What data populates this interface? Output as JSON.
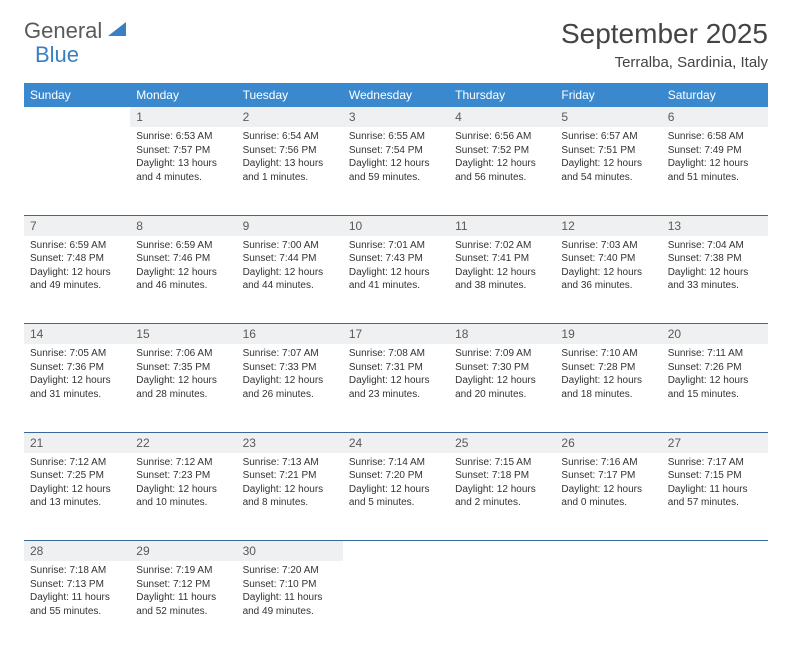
{
  "brand": {
    "part1": "General",
    "part2": "Blue"
  },
  "title": "September 2025",
  "location": "Terralba, Sardinia, Italy",
  "colors": {
    "header_bg": "#3a89cf",
    "header_text": "#ffffff",
    "daynum_bg": "#eef0f1",
    "daynum_text": "#5a5a5a",
    "rule": "#3a6a9a",
    "brand_accent": "#3a7fc4",
    "body_text": "#333333"
  },
  "typography": {
    "title_fontsize": 28,
    "location_fontsize": 15,
    "dayheader_fontsize": 12,
    "daynum_fontsize": 12,
    "cell_fontsize": 10
  },
  "calendar": {
    "type": "table",
    "day_headers": [
      "Sunday",
      "Monday",
      "Tuesday",
      "Wednesday",
      "Thursday",
      "Friday",
      "Saturday"
    ],
    "weeks": [
      [
        null,
        {
          "n": "1",
          "sunrise": "Sunrise: 6:53 AM",
          "sunset": "Sunset: 7:57 PM",
          "daylight": "Daylight: 13 hours and 4 minutes."
        },
        {
          "n": "2",
          "sunrise": "Sunrise: 6:54 AM",
          "sunset": "Sunset: 7:56 PM",
          "daylight": "Daylight: 13 hours and 1 minutes."
        },
        {
          "n": "3",
          "sunrise": "Sunrise: 6:55 AM",
          "sunset": "Sunset: 7:54 PM",
          "daylight": "Daylight: 12 hours and 59 minutes."
        },
        {
          "n": "4",
          "sunrise": "Sunrise: 6:56 AM",
          "sunset": "Sunset: 7:52 PM",
          "daylight": "Daylight: 12 hours and 56 minutes."
        },
        {
          "n": "5",
          "sunrise": "Sunrise: 6:57 AM",
          "sunset": "Sunset: 7:51 PM",
          "daylight": "Daylight: 12 hours and 54 minutes."
        },
        {
          "n": "6",
          "sunrise": "Sunrise: 6:58 AM",
          "sunset": "Sunset: 7:49 PM",
          "daylight": "Daylight: 12 hours and 51 minutes."
        }
      ],
      [
        {
          "n": "7",
          "sunrise": "Sunrise: 6:59 AM",
          "sunset": "Sunset: 7:48 PM",
          "daylight": "Daylight: 12 hours and 49 minutes."
        },
        {
          "n": "8",
          "sunrise": "Sunrise: 6:59 AM",
          "sunset": "Sunset: 7:46 PM",
          "daylight": "Daylight: 12 hours and 46 minutes."
        },
        {
          "n": "9",
          "sunrise": "Sunrise: 7:00 AM",
          "sunset": "Sunset: 7:44 PM",
          "daylight": "Daylight: 12 hours and 44 minutes."
        },
        {
          "n": "10",
          "sunrise": "Sunrise: 7:01 AM",
          "sunset": "Sunset: 7:43 PM",
          "daylight": "Daylight: 12 hours and 41 minutes."
        },
        {
          "n": "11",
          "sunrise": "Sunrise: 7:02 AM",
          "sunset": "Sunset: 7:41 PM",
          "daylight": "Daylight: 12 hours and 38 minutes."
        },
        {
          "n": "12",
          "sunrise": "Sunrise: 7:03 AM",
          "sunset": "Sunset: 7:40 PM",
          "daylight": "Daylight: 12 hours and 36 minutes."
        },
        {
          "n": "13",
          "sunrise": "Sunrise: 7:04 AM",
          "sunset": "Sunset: 7:38 PM",
          "daylight": "Daylight: 12 hours and 33 minutes."
        }
      ],
      [
        {
          "n": "14",
          "sunrise": "Sunrise: 7:05 AM",
          "sunset": "Sunset: 7:36 PM",
          "daylight": "Daylight: 12 hours and 31 minutes."
        },
        {
          "n": "15",
          "sunrise": "Sunrise: 7:06 AM",
          "sunset": "Sunset: 7:35 PM",
          "daylight": "Daylight: 12 hours and 28 minutes."
        },
        {
          "n": "16",
          "sunrise": "Sunrise: 7:07 AM",
          "sunset": "Sunset: 7:33 PM",
          "daylight": "Daylight: 12 hours and 26 minutes."
        },
        {
          "n": "17",
          "sunrise": "Sunrise: 7:08 AM",
          "sunset": "Sunset: 7:31 PM",
          "daylight": "Daylight: 12 hours and 23 minutes."
        },
        {
          "n": "18",
          "sunrise": "Sunrise: 7:09 AM",
          "sunset": "Sunset: 7:30 PM",
          "daylight": "Daylight: 12 hours and 20 minutes."
        },
        {
          "n": "19",
          "sunrise": "Sunrise: 7:10 AM",
          "sunset": "Sunset: 7:28 PM",
          "daylight": "Daylight: 12 hours and 18 minutes."
        },
        {
          "n": "20",
          "sunrise": "Sunrise: 7:11 AM",
          "sunset": "Sunset: 7:26 PM",
          "daylight": "Daylight: 12 hours and 15 minutes."
        }
      ],
      [
        {
          "n": "21",
          "sunrise": "Sunrise: 7:12 AM",
          "sunset": "Sunset: 7:25 PM",
          "daylight": "Daylight: 12 hours and 13 minutes."
        },
        {
          "n": "22",
          "sunrise": "Sunrise: 7:12 AM",
          "sunset": "Sunset: 7:23 PM",
          "daylight": "Daylight: 12 hours and 10 minutes."
        },
        {
          "n": "23",
          "sunrise": "Sunrise: 7:13 AM",
          "sunset": "Sunset: 7:21 PM",
          "daylight": "Daylight: 12 hours and 8 minutes."
        },
        {
          "n": "24",
          "sunrise": "Sunrise: 7:14 AM",
          "sunset": "Sunset: 7:20 PM",
          "daylight": "Daylight: 12 hours and 5 minutes."
        },
        {
          "n": "25",
          "sunrise": "Sunrise: 7:15 AM",
          "sunset": "Sunset: 7:18 PM",
          "daylight": "Daylight: 12 hours and 2 minutes."
        },
        {
          "n": "26",
          "sunrise": "Sunrise: 7:16 AM",
          "sunset": "Sunset: 7:17 PM",
          "daylight": "Daylight: 12 hours and 0 minutes."
        },
        {
          "n": "27",
          "sunrise": "Sunrise: 7:17 AM",
          "sunset": "Sunset: 7:15 PM",
          "daylight": "Daylight: 11 hours and 57 minutes."
        }
      ],
      [
        {
          "n": "28",
          "sunrise": "Sunrise: 7:18 AM",
          "sunset": "Sunset: 7:13 PM",
          "daylight": "Daylight: 11 hours and 55 minutes."
        },
        {
          "n": "29",
          "sunrise": "Sunrise: 7:19 AM",
          "sunset": "Sunset: 7:12 PM",
          "daylight": "Daylight: 11 hours and 52 minutes."
        },
        {
          "n": "30",
          "sunrise": "Sunrise: 7:20 AM",
          "sunset": "Sunset: 7:10 PM",
          "daylight": "Daylight: 11 hours and 49 minutes."
        },
        null,
        null,
        null,
        null
      ]
    ]
  }
}
